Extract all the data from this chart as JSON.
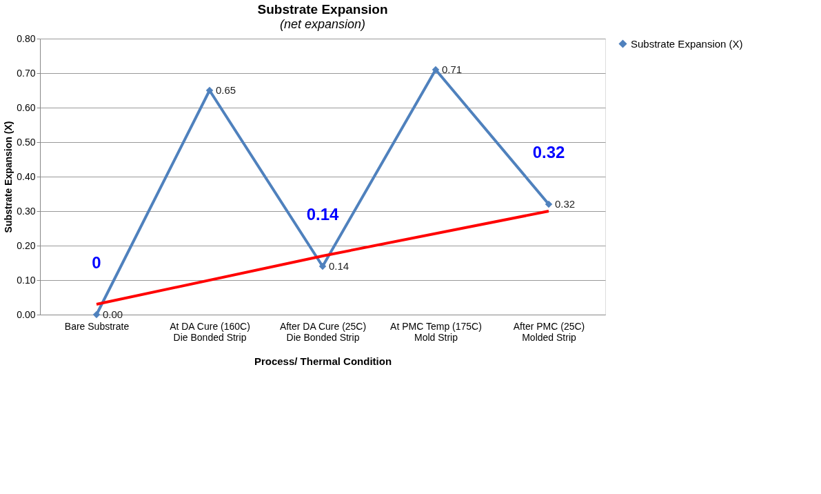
{
  "chart_data": {
    "type": "line",
    "title": "Substrate Expansion",
    "subtitle": "(net expansion)",
    "xlabel": "Process/ Thermal Condition",
    "ylabel": "Substrate Expansion (X)",
    "categories": [
      "Bare Substrate",
      "At  DA Cure (160C)\nDie Bonded Strip",
      "After DA Cure (25C)\nDie Bonded Strip",
      "At PMC Temp (175C)\nMold Strip",
      "After PMC (25C)\nMolded Strip"
    ],
    "series": [
      {
        "name": "Substrate Expansion (X)",
        "color": "#4f81bd",
        "values": [
          0.0,
          0.65,
          0.14,
          0.71,
          0.32
        ],
        "marker": "diamond",
        "value_labels": [
          "0.00",
          "0.65",
          "0.14",
          "0.71",
          "0.32"
        ]
      },
      {
        "type": "line",
        "color": "#ff0000",
        "x": [
          "Bare Substrate",
          "After DA Cure (25C)\nDie Bonded Strip",
          "After PMC (25C)\nMolded Strip"
        ],
        "values": [
          0.03,
          0.17,
          0.3
        ],
        "marker": "none"
      }
    ],
    "annotations": [
      {
        "text": "0",
        "x": "Bare Substrate",
        "y": 0.0
      },
      {
        "text": "0.14",
        "x": "After DA Cure (25C)\nDie Bonded Strip",
        "y": 0.14
      },
      {
        "text": "0.32",
        "x": "After PMC (25C)\nMolded Strip",
        "y": 0.32
      }
    ],
    "ylim": [
      0,
      0.8
    ],
    "yticks": [
      {
        "value": 0.0,
        "label": "0.00"
      },
      {
        "value": 0.1,
        "label": "0.10"
      },
      {
        "value": 0.2,
        "label": "0.20"
      },
      {
        "value": 0.3,
        "label": "0.30"
      },
      {
        "value": 0.4,
        "label": "0.40"
      },
      {
        "value": 0.5,
        "label": "0.50"
      },
      {
        "value": 0.6,
        "label": "0.60"
      },
      {
        "value": 0.7,
        "label": "0.70"
      },
      {
        "value": 0.8,
        "label": "0.80"
      }
    ],
    "grid": "y",
    "legend": "right",
    "line_style": "solid"
  }
}
